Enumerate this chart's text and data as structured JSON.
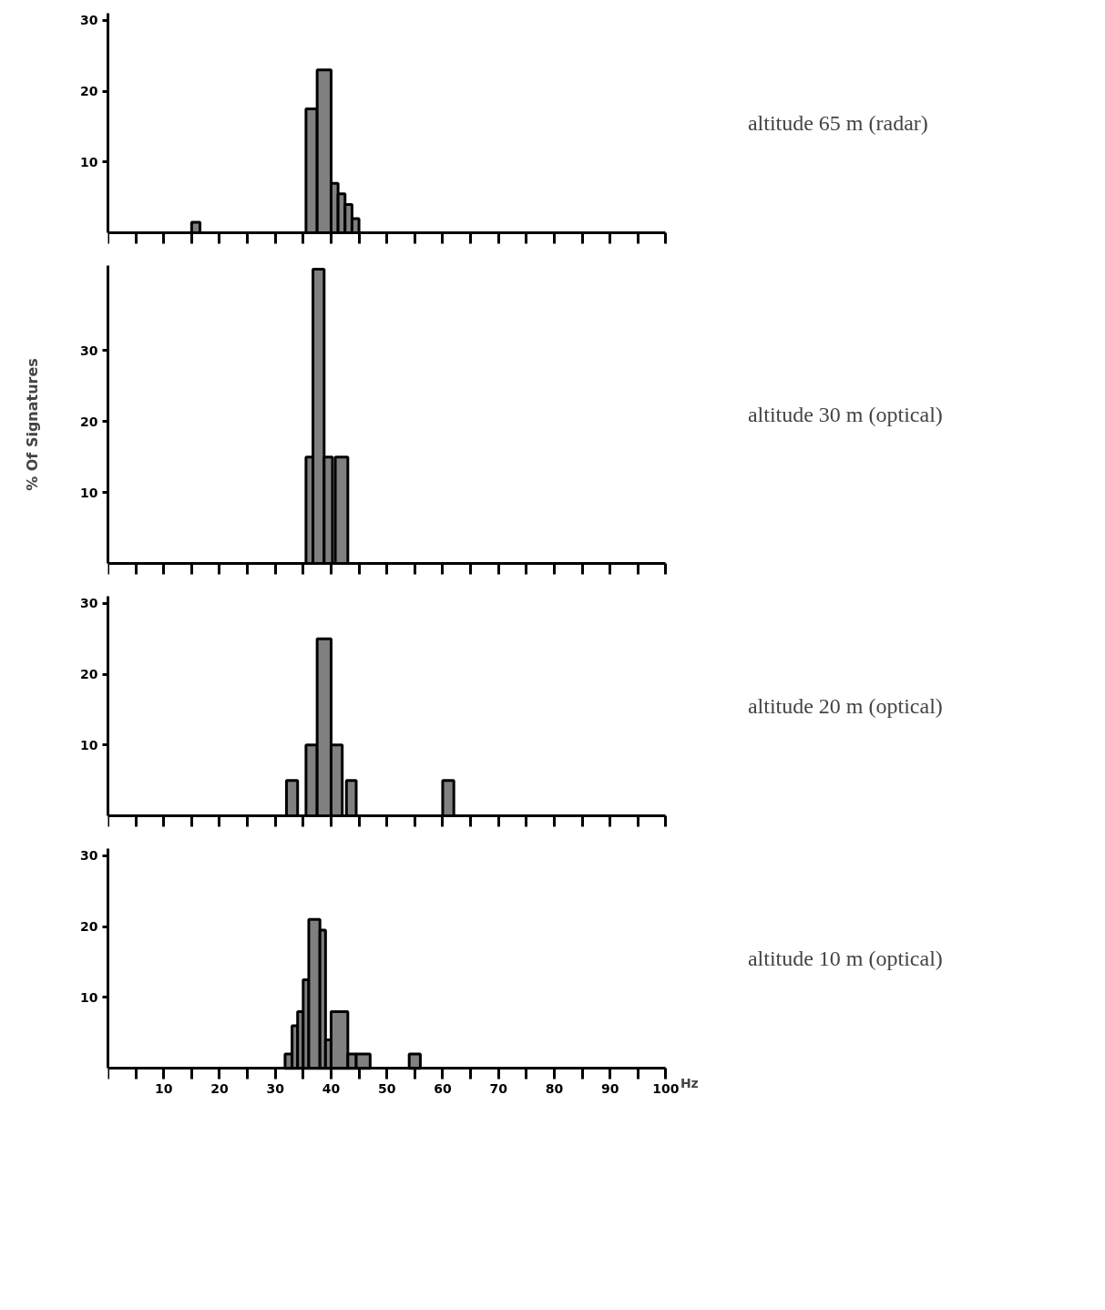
{
  "chart_data": [
    {
      "type": "histogram",
      "annotations": [
        "altitude 65 m (radar)"
      ],
      "bins": [
        15,
        16.5,
        35.5,
        37.5,
        40,
        41.25,
        42.5,
        43.75,
        45
      ],
      "values": [
        1.5,
        0,
        17.5,
        23,
        7,
        5.5,
        4,
        2
      ],
      "color": "#808080",
      "xlim": [
        0,
        100
      ],
      "ylim": [
        0,
        31
      ],
      "yticks": [
        10,
        20,
        30
      ],
      "xticks": [
        {
          "value": 0,
          "label": null
        },
        {
          "value": 5,
          "label": null
        },
        {
          "value": 10,
          "label": null
        },
        {
          "value": 15,
          "label": null
        },
        {
          "value": 20,
          "label": null
        },
        {
          "value": 25,
          "label": null
        },
        {
          "value": 30,
          "label": null
        },
        {
          "value": 35,
          "label": null
        },
        {
          "value": 40,
          "label": null
        },
        {
          "value": 45,
          "label": null
        },
        {
          "value": 50,
          "label": null
        },
        {
          "value": 55,
          "label": null
        },
        {
          "value": 60,
          "label": null
        },
        {
          "value": 65,
          "label": null
        },
        {
          "value": 70,
          "label": null
        },
        {
          "value": 75,
          "label": null
        },
        {
          "value": 80,
          "label": null
        },
        {
          "value": 85,
          "label": null
        },
        {
          "value": 90,
          "label": null
        },
        {
          "value": 95,
          "label": null
        },
        {
          "value": 100,
          "label": null
        }
      ],
      "tick_labels": "y",
      "grid": false
    },
    {
      "type": "histogram",
      "annotations": [
        "altitude 30 m (optical)"
      ],
      "ylabel": "% Of Signatures",
      "bins": [
        35.5,
        36.75,
        38.75,
        40.25,
        40.75,
        43
      ],
      "values": [
        15,
        41.5,
        15,
        0,
        15
      ],
      "color": "#808080",
      "xlim": [
        0,
        100
      ],
      "ylim": [
        0,
        42
      ],
      "yticks": [
        10,
        20,
        30
      ],
      "xticks": [
        {
          "value": 0,
          "label": null
        },
        {
          "value": 5,
          "label": null
        },
        {
          "value": 10,
          "label": null
        },
        {
          "value": 15,
          "label": null
        },
        {
          "value": 20,
          "label": null
        },
        {
          "value": 25,
          "label": null
        },
        {
          "value": 30,
          "label": null
        },
        {
          "value": 35,
          "label": null
        },
        {
          "value": 40,
          "label": null
        },
        {
          "value": 45,
          "label": null
        },
        {
          "value": 50,
          "label": null
        },
        {
          "value": 55,
          "label": null
        },
        {
          "value": 60,
          "label": null
        },
        {
          "value": 65,
          "label": null
        },
        {
          "value": 70,
          "label": null
        },
        {
          "value": 75,
          "label": null
        },
        {
          "value": 80,
          "label": null
        },
        {
          "value": 85,
          "label": null
        },
        {
          "value": 90,
          "label": null
        },
        {
          "value": 95,
          "label": null
        },
        {
          "value": 100,
          "label": null
        }
      ],
      "tick_labels": "y",
      "grid": false
    },
    {
      "type": "histogram",
      "annotations": [
        "altitude 20 m (optical)"
      ],
      "bins": [
        32,
        34,
        35.5,
        37.5,
        40,
        42,
        42.75,
        44.5,
        60,
        62
      ],
      "values": [
        5,
        0,
        10,
        25,
        10,
        0,
        5,
        0,
        5
      ],
      "color": "#808080",
      "xlim": [
        0,
        100
      ],
      "ylim": [
        0,
        31
      ],
      "yticks": [
        10,
        20,
        30
      ],
      "xticks": [
        {
          "value": 0,
          "label": null
        },
        {
          "value": 5,
          "label": null
        },
        {
          "value": 10,
          "label": null
        },
        {
          "value": 15,
          "label": null
        },
        {
          "value": 20,
          "label": null
        },
        {
          "value": 25,
          "label": null
        },
        {
          "value": 30,
          "label": null
        },
        {
          "value": 35,
          "label": null
        },
        {
          "value": 40,
          "label": null
        },
        {
          "value": 45,
          "label": null
        },
        {
          "value": 50,
          "label": null
        },
        {
          "value": 55,
          "label": null
        },
        {
          "value": 60,
          "label": null
        },
        {
          "value": 65,
          "label": null
        },
        {
          "value": 70,
          "label": null
        },
        {
          "value": 75,
          "label": null
        },
        {
          "value": 80,
          "label": null
        },
        {
          "value": 85,
          "label": null
        },
        {
          "value": 90,
          "label": null
        },
        {
          "value": 95,
          "label": null
        },
        {
          "value": 100,
          "label": null
        }
      ],
      "tick_labels": "y",
      "grid": false
    },
    {
      "type": "histogram",
      "annotations": [
        "altitude 10 m (optical)"
      ],
      "xlabel": "Hz",
      "bins": [
        31.75,
        33,
        34,
        35,
        36,
        38,
        39,
        40,
        43,
        44.5,
        47,
        54,
        56
      ],
      "values": [
        2,
        6,
        8,
        12.5,
        21,
        19.5,
        4,
        8,
        2,
        2,
        0,
        2
      ],
      "color": "#808080",
      "xlim": [
        0,
        100
      ],
      "ylim": [
        0,
        31
      ],
      "yticks": [
        10,
        20,
        30
      ],
      "xticks": [
        {
          "value": 0,
          "label": null
        },
        {
          "value": 5,
          "label": null
        },
        10,
        {
          "value": 15,
          "label": null
        },
        20,
        {
          "value": 25,
          "label": null
        },
        30,
        {
          "value": 35,
          "label": null
        },
        40,
        {
          "value": 45,
          "label": null
        },
        50,
        {
          "value": 55,
          "label": null
        },
        60,
        {
          "value": 65,
          "label": null
        },
        70,
        {
          "value": 75,
          "label": null
        },
        80,
        {
          "value": 85,
          "label": null
        },
        90,
        {
          "value": 95,
          "label": null
        },
        100
      ],
      "grid": false
    }
  ]
}
